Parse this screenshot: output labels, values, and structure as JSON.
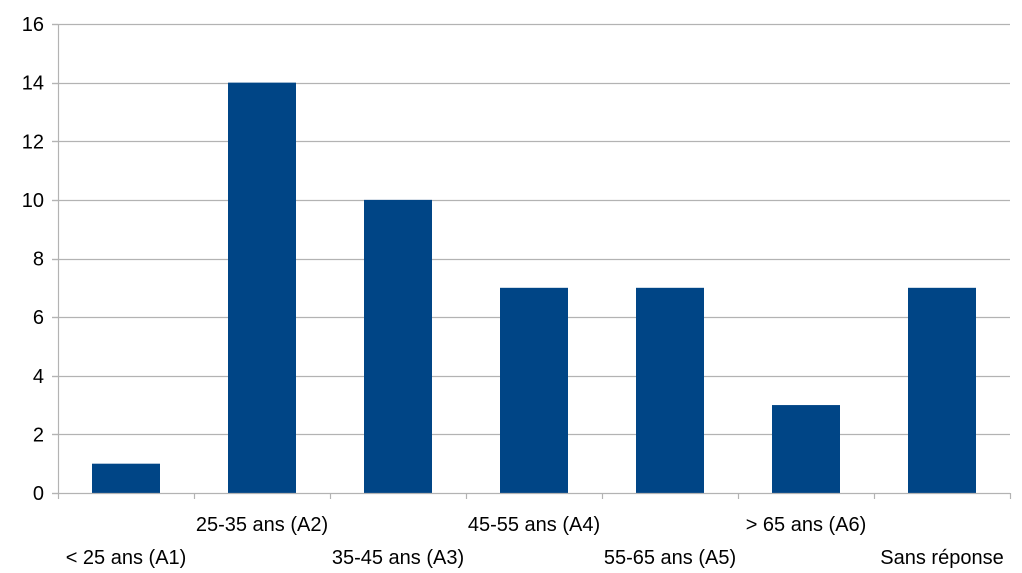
{
  "chart_data": {
    "type": "bar",
    "title": "",
    "xlabel": "",
    "ylabel": "",
    "categories": [
      "< 25 ans (A1)",
      "25-35 ans (A2)",
      "35-45 ans (A3)",
      "45-55 ans (A4)",
      "55-65 ans (A5)",
      "> 65 ans (A6)",
      "Sans réponse"
    ],
    "values": [
      1,
      14,
      10,
      7,
      7,
      3,
      7
    ],
    "ylim": [
      0,
      16
    ],
    "yticks": [
      0,
      2,
      4,
      6,
      8,
      10,
      12,
      14,
      16
    ],
    "grid": true,
    "legend": "none",
    "bar_color": "#004586",
    "grid_color": "#b3b3b3",
    "axis_color": "#b3b3b3"
  }
}
